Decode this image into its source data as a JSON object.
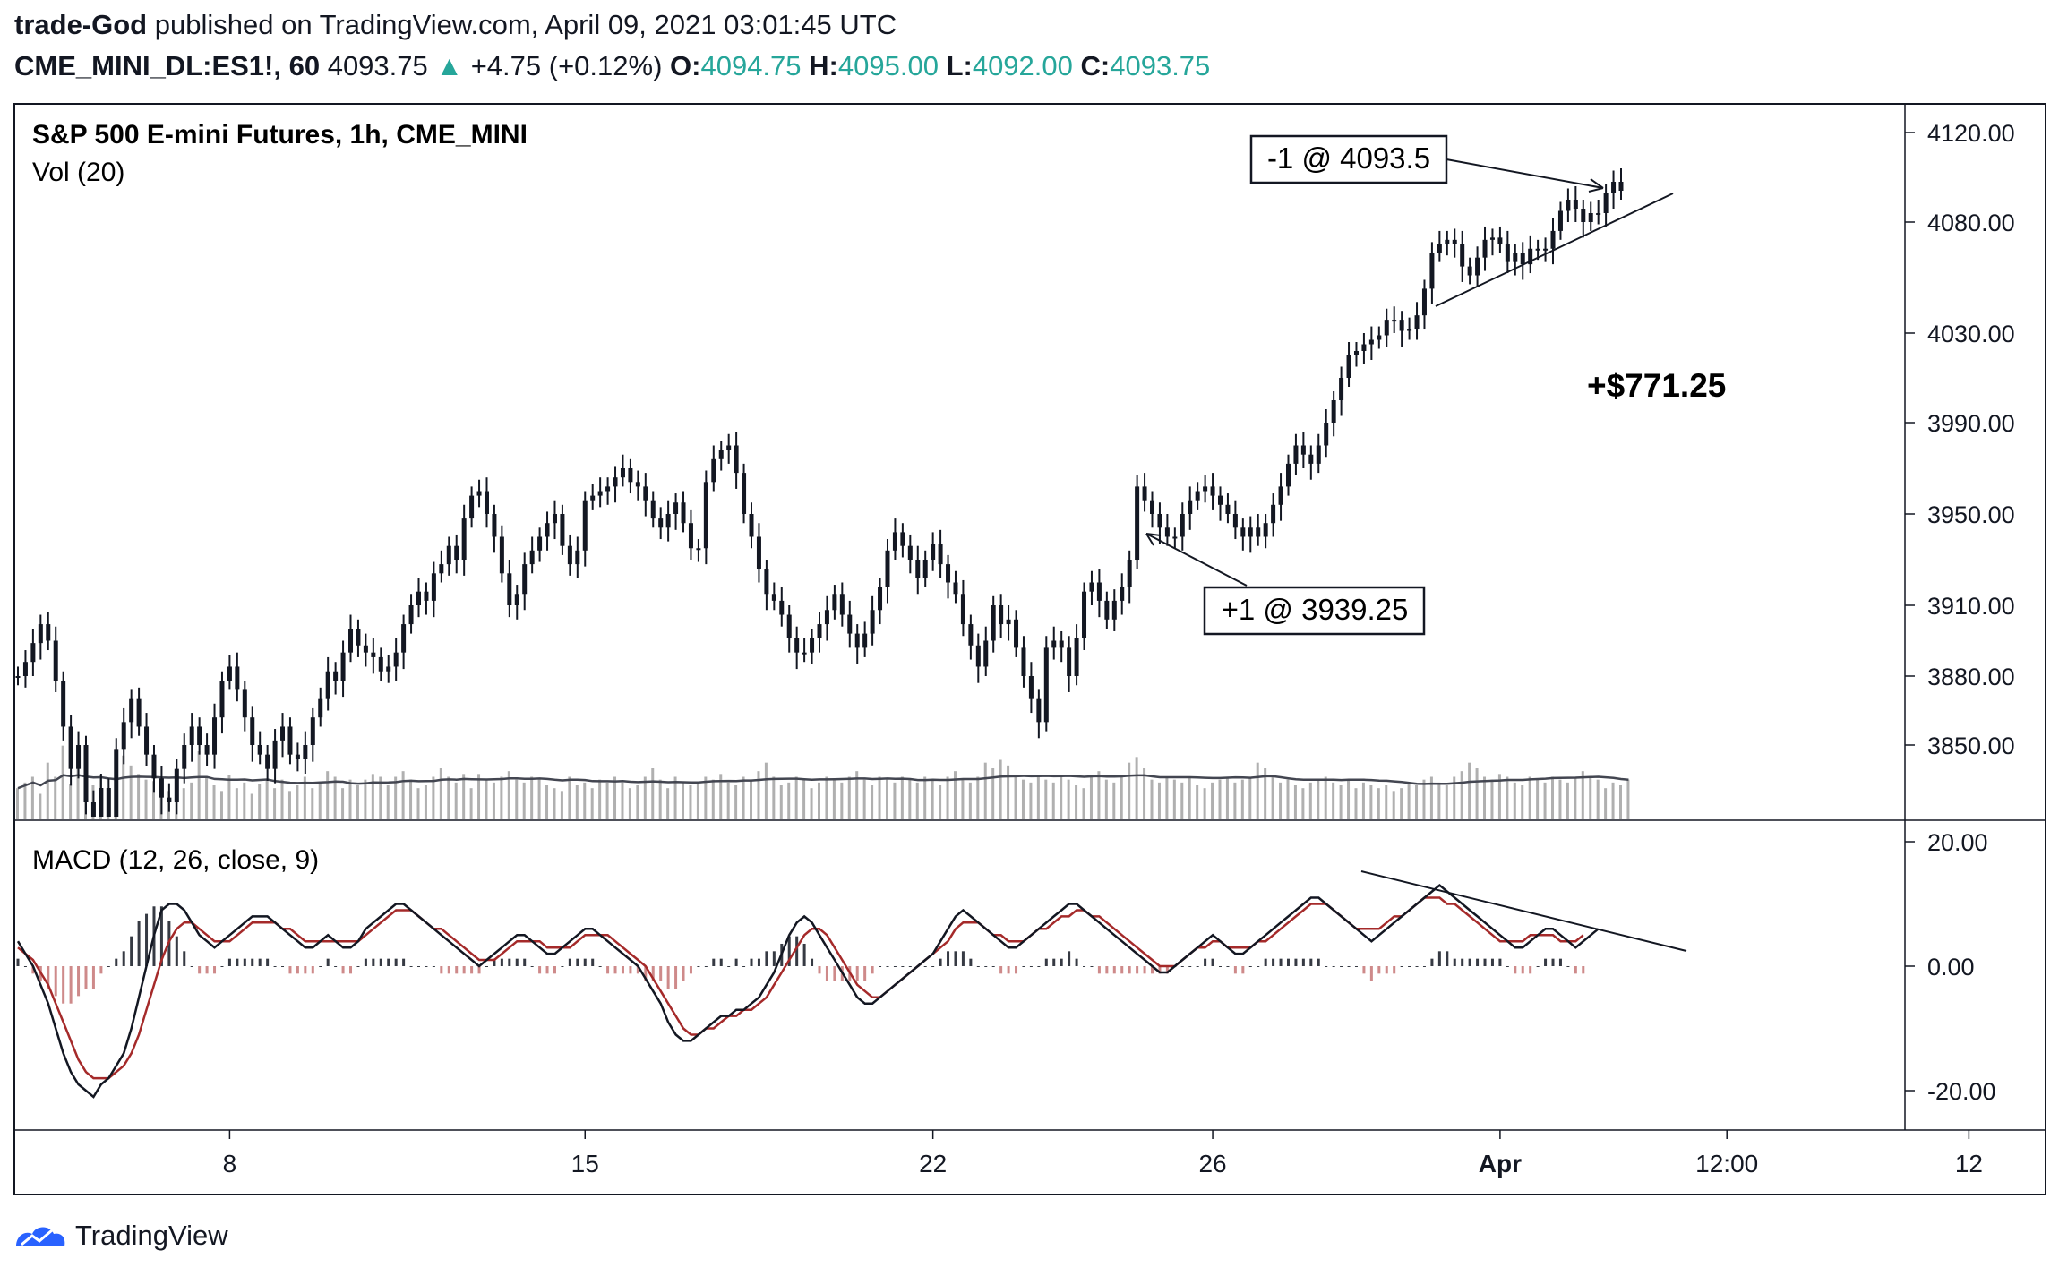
{
  "header": {
    "author": "trade-God",
    "published_text": "published on TradingView.com, April 09, 2021 03:01:45 UTC",
    "symbol": "CME_MINI_DL:ES1!, 60",
    "last": "4093.75",
    "change": "+4.75 (+0.12%)",
    "o_label": "O:",
    "o": "4094.75",
    "h_label": "H:",
    "h": "4095.00",
    "l_label": "L:",
    "l": "4092.00",
    "c_label": "C:",
    "c": "4093.75",
    "up_color": "#26a69a"
  },
  "chart_data": {
    "type": "line",
    "title": "S&P 500 E-mini Futures, 1h, CME_MINI",
    "volume_label": "Vol (20)",
    "macd_label": "MACD (12, 26, close, 9)",
    "price_ticks": [
      "4120.00",
      "4080.00",
      "4030.00",
      "3990.00",
      "3950.00",
      "3910.00",
      "3880.00",
      "3850.00"
    ],
    "price_tick_values": [
      4120,
      4080,
      4030,
      3990,
      3950,
      3910,
      3880,
      3850
    ],
    "macd_ticks": [
      "20.00",
      "0.00",
      "-20.00"
    ],
    "macd_tick_values": [
      20,
      0,
      -20
    ],
    "x_ticks": [
      "8",
      "15",
      "22",
      "26",
      "Apr",
      "12:00",
      "12"
    ],
    "x_tick_index": [
      28,
      75,
      121,
      158,
      196,
      226,
      258
    ],
    "price_close_series": [
      3880,
      3886,
      3894,
      3902,
      3895,
      3878,
      3858,
      3840,
      3850,
      3826,
      3810,
      3832,
      3820,
      3848,
      3860,
      3870,
      3858,
      3846,
      3836,
      3828,
      3826,
      3840,
      3850,
      3858,
      3850,
      3846,
      3862,
      3878,
      3884,
      3874,
      3862,
      3850,
      3846,
      3840,
      3852,
      3858,
      3846,
      3844,
      3850,
      3862,
      3870,
      3882,
      3878,
      3890,
      3900,
      3893,
      3890,
      3888,
      3882,
      3884,
      3890,
      3902,
      3910,
      3916,
      3912,
      3924,
      3928,
      3936,
      3930,
      3948,
      3958,
      3960,
      3950,
      3940,
      3924,
      3910,
      3915,
      3928,
      3934,
      3940,
      3946,
      3950,
      3936,
      3928,
      3934,
      3956,
      3958,
      3960,
      3962,
      3966,
      3970,
      3964,
      3962,
      3956,
      3948,
      3944,
      3950,
      3955,
      3946,
      3935,
      3935,
      3964,
      3974,
      3978,
      3980,
      3968,
      3950,
      3940,
      3926,
      3915,
      3912,
      3906,
      3896,
      3890,
      3890,
      3896,
      3902,
      3908,
      3915,
      3906,
      3898,
      3892,
      3898,
      3908,
      3918,
      3934,
      3942,
      3936,
      3930,
      3922,
      3930,
      3937,
      3928,
      3920,
      3915,
      3902,
      3893,
      3884,
      3895,
      3910,
      3902,
      3904,
      3892,
      3880,
      3870,
      3860,
      3892,
      3895,
      3892,
      3880,
      3896,
      3916,
      3920,
      3912,
      3904,
      3912,
      3918,
      3930,
      3962,
      3956,
      3950,
      3944,
      3940,
      3940,
      3950,
      3956,
      3960,
      3962,
      3958,
      3954,
      3950,
      3944,
      3940,
      3944,
      3940,
      3946,
      3954,
      3962,
      3972,
      3980,
      3976,
      3972,
      3980,
      3990,
      4000,
      4010,
      4020,
      4022,
      4025,
      4027,
      4029,
      4036,
      4036,
      4031,
      4032,
      4038,
      4050,
      4066,
      4070,
      4072,
      4070,
      4060,
      4056,
      4064,
      4072,
      4073,
      4070,
      4062,
      4066,
      4061,
      4068,
      4068,
      4068,
      4076,
      4085,
      4090,
      4086,
      4080,
      4084,
      4084,
      4093,
      4098,
      4094
    ],
    "volume_series": [
      22,
      26,
      30,
      18,
      40,
      30,
      52,
      25,
      38,
      20,
      24,
      31,
      18,
      22,
      45,
      38,
      32,
      28,
      27,
      24,
      20,
      28,
      22,
      26,
      48,
      30,
      24,
      20,
      31,
      22,
      26,
      18,
      25,
      28,
      22,
      28,
      20,
      24,
      30,
      22,
      26,
      34,
      30,
      22,
      28,
      24,
      28,
      32,
      30,
      24,
      30,
      34,
      28,
      22,
      24,
      30,
      36,
      30,
      26,
      32,
      22,
      32,
      28,
      26,
      30,
      34,
      28,
      26,
      30,
      28,
      24,
      22,
      20,
      30,
      24,
      26,
      22,
      28,
      26,
      30,
      26,
      22,
      24,
      30,
      36,
      28,
      22,
      30,
      26,
      24,
      26,
      30,
      28,
      32,
      26,
      24,
      30,
      28,
      34,
      40,
      30,
      24,
      26,
      30,
      28,
      22,
      26,
      30,
      28,
      26,
      30,
      34,
      28,
      24,
      30,
      28,
      26,
      30,
      28,
      26,
      30,
      28,
      24,
      30,
      34,
      28,
      26,
      30,
      40,
      36,
      42,
      38,
      30,
      28,
      26,
      30,
      28,
      26,
      30,
      28,
      24,
      22,
      30,
      34,
      28,
      26,
      30,
      40,
      44,
      36,
      28,
      26,
      30,
      28,
      26,
      30,
      24,
      22,
      26,
      28,
      30,
      26,
      28,
      30,
      40,
      36,
      30,
      26,
      28,
      24,
      22,
      26,
      28,
      30,
      26,
      24,
      28,
      22,
      26,
      24,
      22,
      24,
      20,
      22,
      26,
      24,
      28,
      30,
      26,
      24,
      30,
      34,
      40,
      36,
      30,
      28,
      32,
      30,
      26,
      24,
      30,
      28,
      26,
      30,
      28,
      26,
      30,
      34,
      30,
      28,
      22,
      26,
      24,
      28
    ],
    "macd_series": [
      4,
      2,
      0,
      -3,
      -6,
      -10,
      -14,
      -17,
      -19,
      -20,
      -21,
      -19,
      -18,
      -16,
      -14,
      -10,
      -5,
      0,
      5,
      9,
      10,
      10,
      9,
      7,
      5,
      4,
      3,
      4,
      5,
      6,
      7,
      8,
      8,
      8,
      7,
      6,
      5,
      4,
      3,
      3,
      4,
      5,
      4,
      3,
      3,
      4,
      6,
      7,
      8,
      9,
      10,
      10,
      9,
      8,
      7,
      6,
      5,
      4,
      3,
      2,
      1,
      0,
      1,
      2,
      3,
      4,
      5,
      5,
      4,
      3,
      2,
      2,
      3,
      4,
      5,
      6,
      6,
      5,
      4,
      3,
      2,
      1,
      0,
      -2,
      -4,
      -6,
      -9,
      -11,
      -12,
      -12,
      -11,
      -10,
      -9,
      -8,
      -8,
      -7,
      -7,
      -6,
      -5,
      -3,
      -1,
      2,
      5,
      7,
      8,
      7,
      5,
      3,
      1,
      -1,
      -3,
      -5,
      -6,
      -6,
      -5,
      -4,
      -3,
      -2,
      -1,
      0,
      1,
      2,
      4,
      6,
      8,
      9,
      8,
      7,
      6,
      5,
      4,
      3,
      3,
      4,
      5,
      6,
      7,
      8,
      9,
      10,
      10,
      9,
      8,
      7,
      6,
      5,
      4,
      3,
      2,
      1,
      0,
      -1,
      -1,
      0,
      1,
      2,
      3,
      4,
      5,
      4,
      3,
      2,
      2,
      3,
      4,
      5,
      6,
      7,
      8,
      9,
      10,
      11,
      11,
      10,
      9,
      8,
      7,
      6,
      5,
      4,
      5,
      6,
      7,
      8,
      9,
      10,
      11,
      12,
      13,
      12,
      11,
      10,
      9,
      8,
      7,
      6,
      5,
      4,
      3,
      3,
      4,
      5,
      6,
      6,
      5,
      4,
      3,
      4,
      5,
      6
    ],
    "signal_series": [
      3,
      2,
      1,
      -1,
      -3,
      -6,
      -9,
      -12,
      -15,
      -17,
      -18,
      -18,
      -18,
      -17,
      -16,
      -14,
      -11,
      -7,
      -3,
      1,
      4,
      6,
      7,
      7,
      6,
      5,
      4,
      4,
      4,
      5,
      6,
      7,
      7,
      7,
      7,
      6,
      6,
      5,
      4,
      4,
      4,
      4,
      4,
      4,
      4,
      4,
      5,
      6,
      7,
      8,
      9,
      9,
      9,
      8,
      7,
      6,
      6,
      5,
      4,
      3,
      2,
      1,
      1,
      1,
      2,
      3,
      4,
      4,
      4,
      4,
      3,
      3,
      3,
      3,
      4,
      5,
      5,
      5,
      5,
      4,
      3,
      2,
      1,
      0,
      -2,
      -4,
      -6,
      -8,
      -10,
      -11,
      -11,
      -10,
      -10,
      -9,
      -8,
      -8,
      -7,
      -7,
      -6,
      -5,
      -3,
      -1,
      1,
      3,
      5,
      6,
      6,
      5,
      3,
      1,
      -1,
      -3,
      -4,
      -5,
      -5,
      -4,
      -3,
      -2,
      -1,
      0,
      1,
      2,
      3,
      4,
      6,
      7,
      7,
      7,
      6,
      5,
      5,
      4,
      4,
      4,
      5,
      6,
      6,
      7,
      8,
      8,
      9,
      9,
      8,
      8,
      7,
      6,
      5,
      4,
      3,
      2,
      1,
      0,
      0,
      0,
      1,
      2,
      3,
      3,
      4,
      4,
      3,
      3,
      3,
      3,
      4,
      4,
      5,
      6,
      7,
      8,
      9,
      10,
      10,
      10,
      9,
      8,
      7,
      6,
      6,
      6,
      6,
      7,
      8,
      8,
      9,
      10,
      11,
      11,
      11,
      10,
      10,
      9,
      8,
      7,
      6,
      5,
      4,
      4,
      4,
      4,
      5,
      5,
      5,
      5,
      4,
      4,
      4,
      5
    ],
    "annotations": [
      "-1 @ 4093.5",
      "+1 @ 3939.25",
      "+$771.25"
    ],
    "line_color": "#131722",
    "signal_color": "#a52a2a",
    "volume_color": "#b0b0b0",
    "volume_ma_color": "#434651",
    "hist_up_color": "#131722",
    "hist_down_color": "#a52a2a",
    "grid": false
  },
  "footer": {
    "brand": "TradingView",
    "brand_color": "#2962ff"
  }
}
